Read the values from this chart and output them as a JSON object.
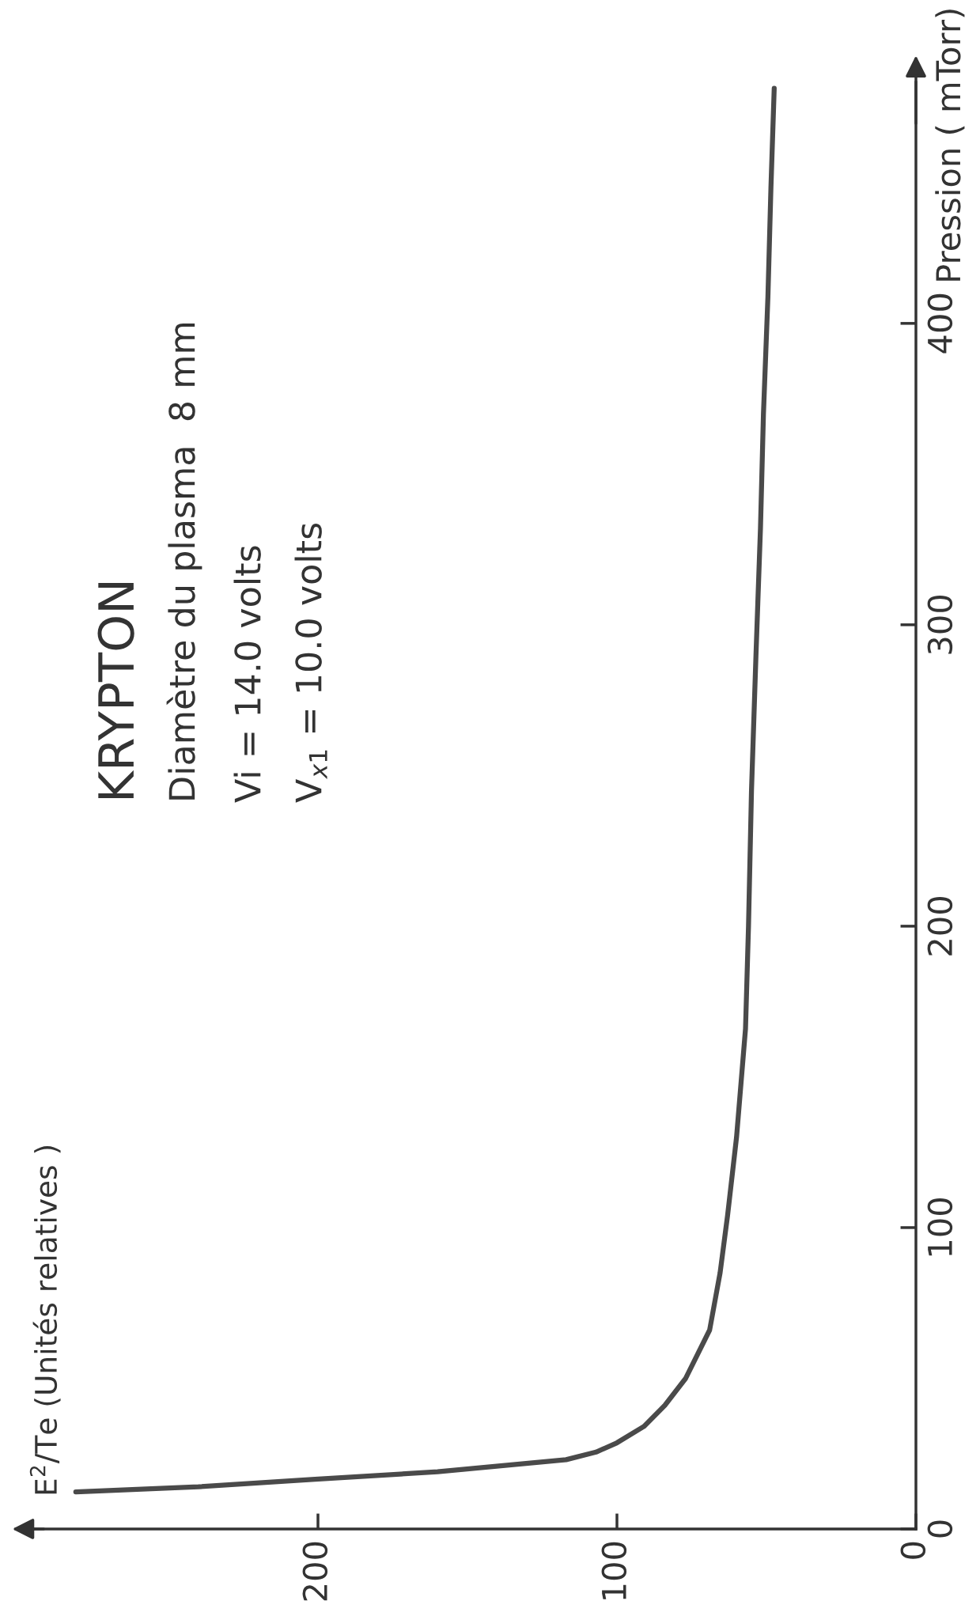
{
  "chart_data": {
    "type": "line",
    "ylabel": "Pression ( mTorr)",
    "annotations": [
      "E$^{2}$/Te (Unités relatives )",
      "KRYPTON",
      "Diamètre du plasma  8 mm",
      "Vi = 14.0 volts",
      "V$_{x1}$ = 10.0 volts"
    ],
    "xlim": [
      300,
      0
    ],
    "ylim": [
      0,
      480
    ],
    "xticks": [
      0,
      100,
      200
    ],
    "yticks": [
      0,
      100,
      200,
      300,
      400
    ],
    "series": [
      {
        "color": "#4a4a4a",
        "x": [
          281,
          240,
          201,
          160,
          117,
          107,
          100,
          91,
          84,
          77,
          69,
          65.5,
          63,
          60,
          57,
          56,
          55,
          53.5,
          52,
          51,
          49.5,
          48.5,
          47.4
        ],
        "values": [
          12.3,
          14,
          16.5,
          19,
          23,
          25.5,
          28.6,
          34,
          41,
          50,
          66,
          85,
          104,
          130,
          166,
          200,
          245,
          290,
          332,
          370,
          409,
          445,
          478
        ]
      }
    ]
  }
}
